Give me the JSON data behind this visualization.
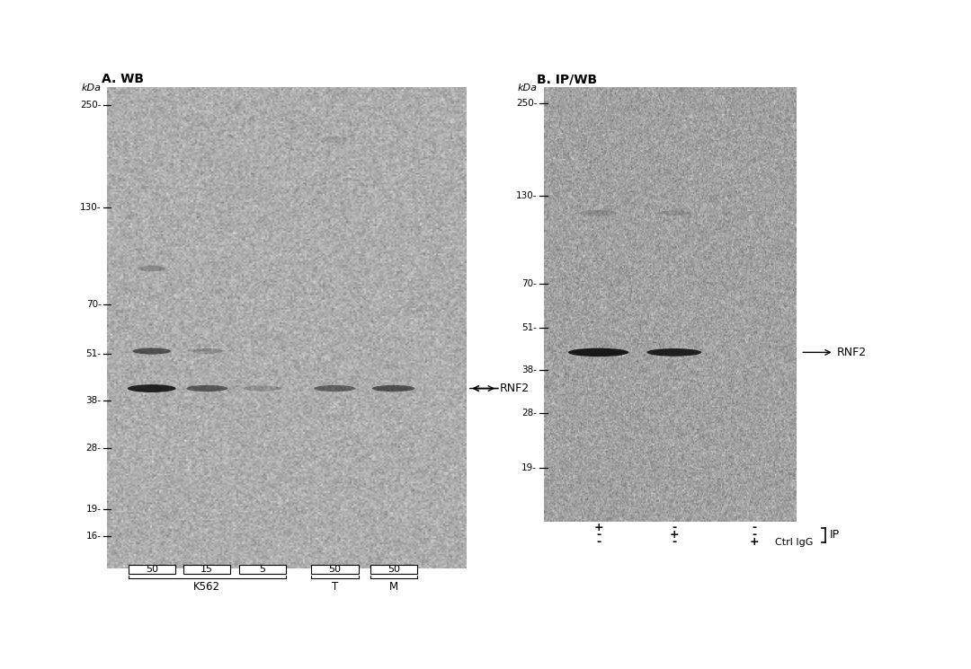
{
  "bg_color_a": "#ddd8d0",
  "bg_color_b": "#ccc8c0",
  "white_color": "#ffffff",
  "panel_a_title": "A. WB",
  "panel_b_title": "B. IP/WB",
  "kda_label": "kDa",
  "marker_positions": [
    250,
    130,
    70,
    51,
    38,
    28,
    19,
    16
  ],
  "marker_positions_b": [
    250,
    130,
    70,
    51,
    38,
    28,
    19
  ],
  "rnf2_label": "RNF2",
  "rnf2_kda_a": 41,
  "rnf2_kda_b": 43,
  "lane_labels_a": [
    "50",
    "15",
    "5",
    "50",
    "50"
  ],
  "group_labels_a": [
    "K562",
    "T",
    "M"
  ],
  "panel_b_symbols_row0": [
    "+",
    "-",
    "-"
  ],
  "panel_b_symbols_row1": [
    "-",
    "+",
    "-"
  ],
  "panel_b_symbols_row2": [
    "-",
    "-",
    "+"
  ],
  "panel_b_ctrl_label": "Ctrl IgG",
  "ip_label": "IP"
}
